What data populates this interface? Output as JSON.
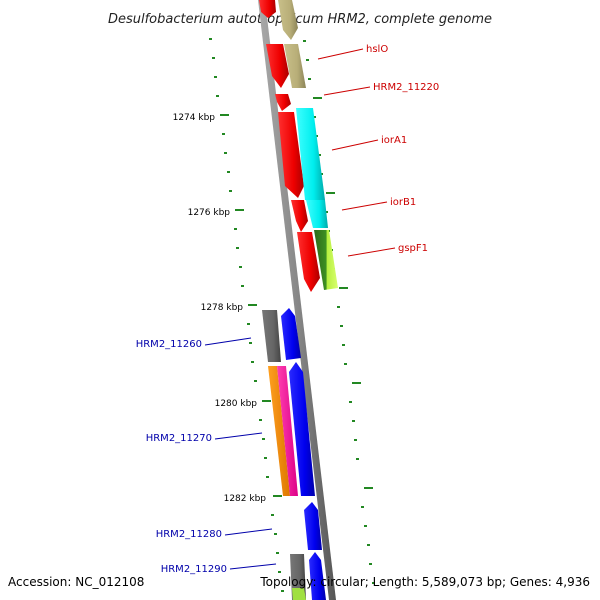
{
  "title": "Desulfobacterium autotrophicum HRM2, complete genome",
  "footer": {
    "accession": "Accession: NC_012108",
    "summary": "Topology: circular; Length: 5,589,073 bp; Genes: 4,936"
  },
  "kbp_labels": [
    "1274 kbp",
    "1276 kbp",
    "1278 kbp",
    "1280 kbp",
    "1282 kbp"
  ],
  "gene_labels": [
    {
      "text": "hslO",
      "color": "#cc0000"
    },
    {
      "text": "HRM2_11220",
      "color": "#cc0000"
    },
    {
      "text": "iorA1",
      "color": "#cc0000"
    },
    {
      "text": "iorB1",
      "color": "#cc0000"
    },
    {
      "text": "gspF1",
      "color": "#cc0000"
    },
    {
      "text": "HRM2_11260",
      "color": "#0000aa"
    },
    {
      "text": "HRM2_11270",
      "color": "#0000aa"
    },
    {
      "text": "HRM2_11280",
      "color": "#0000aa"
    },
    {
      "text": "HRM2_11290",
      "color": "#0000aa"
    }
  ],
  "colors": {
    "backbone": "#888888",
    "forward_strand": "#ff0000",
    "reverse_strand": "#0000ff",
    "tick_marks": "#228822"
  }
}
